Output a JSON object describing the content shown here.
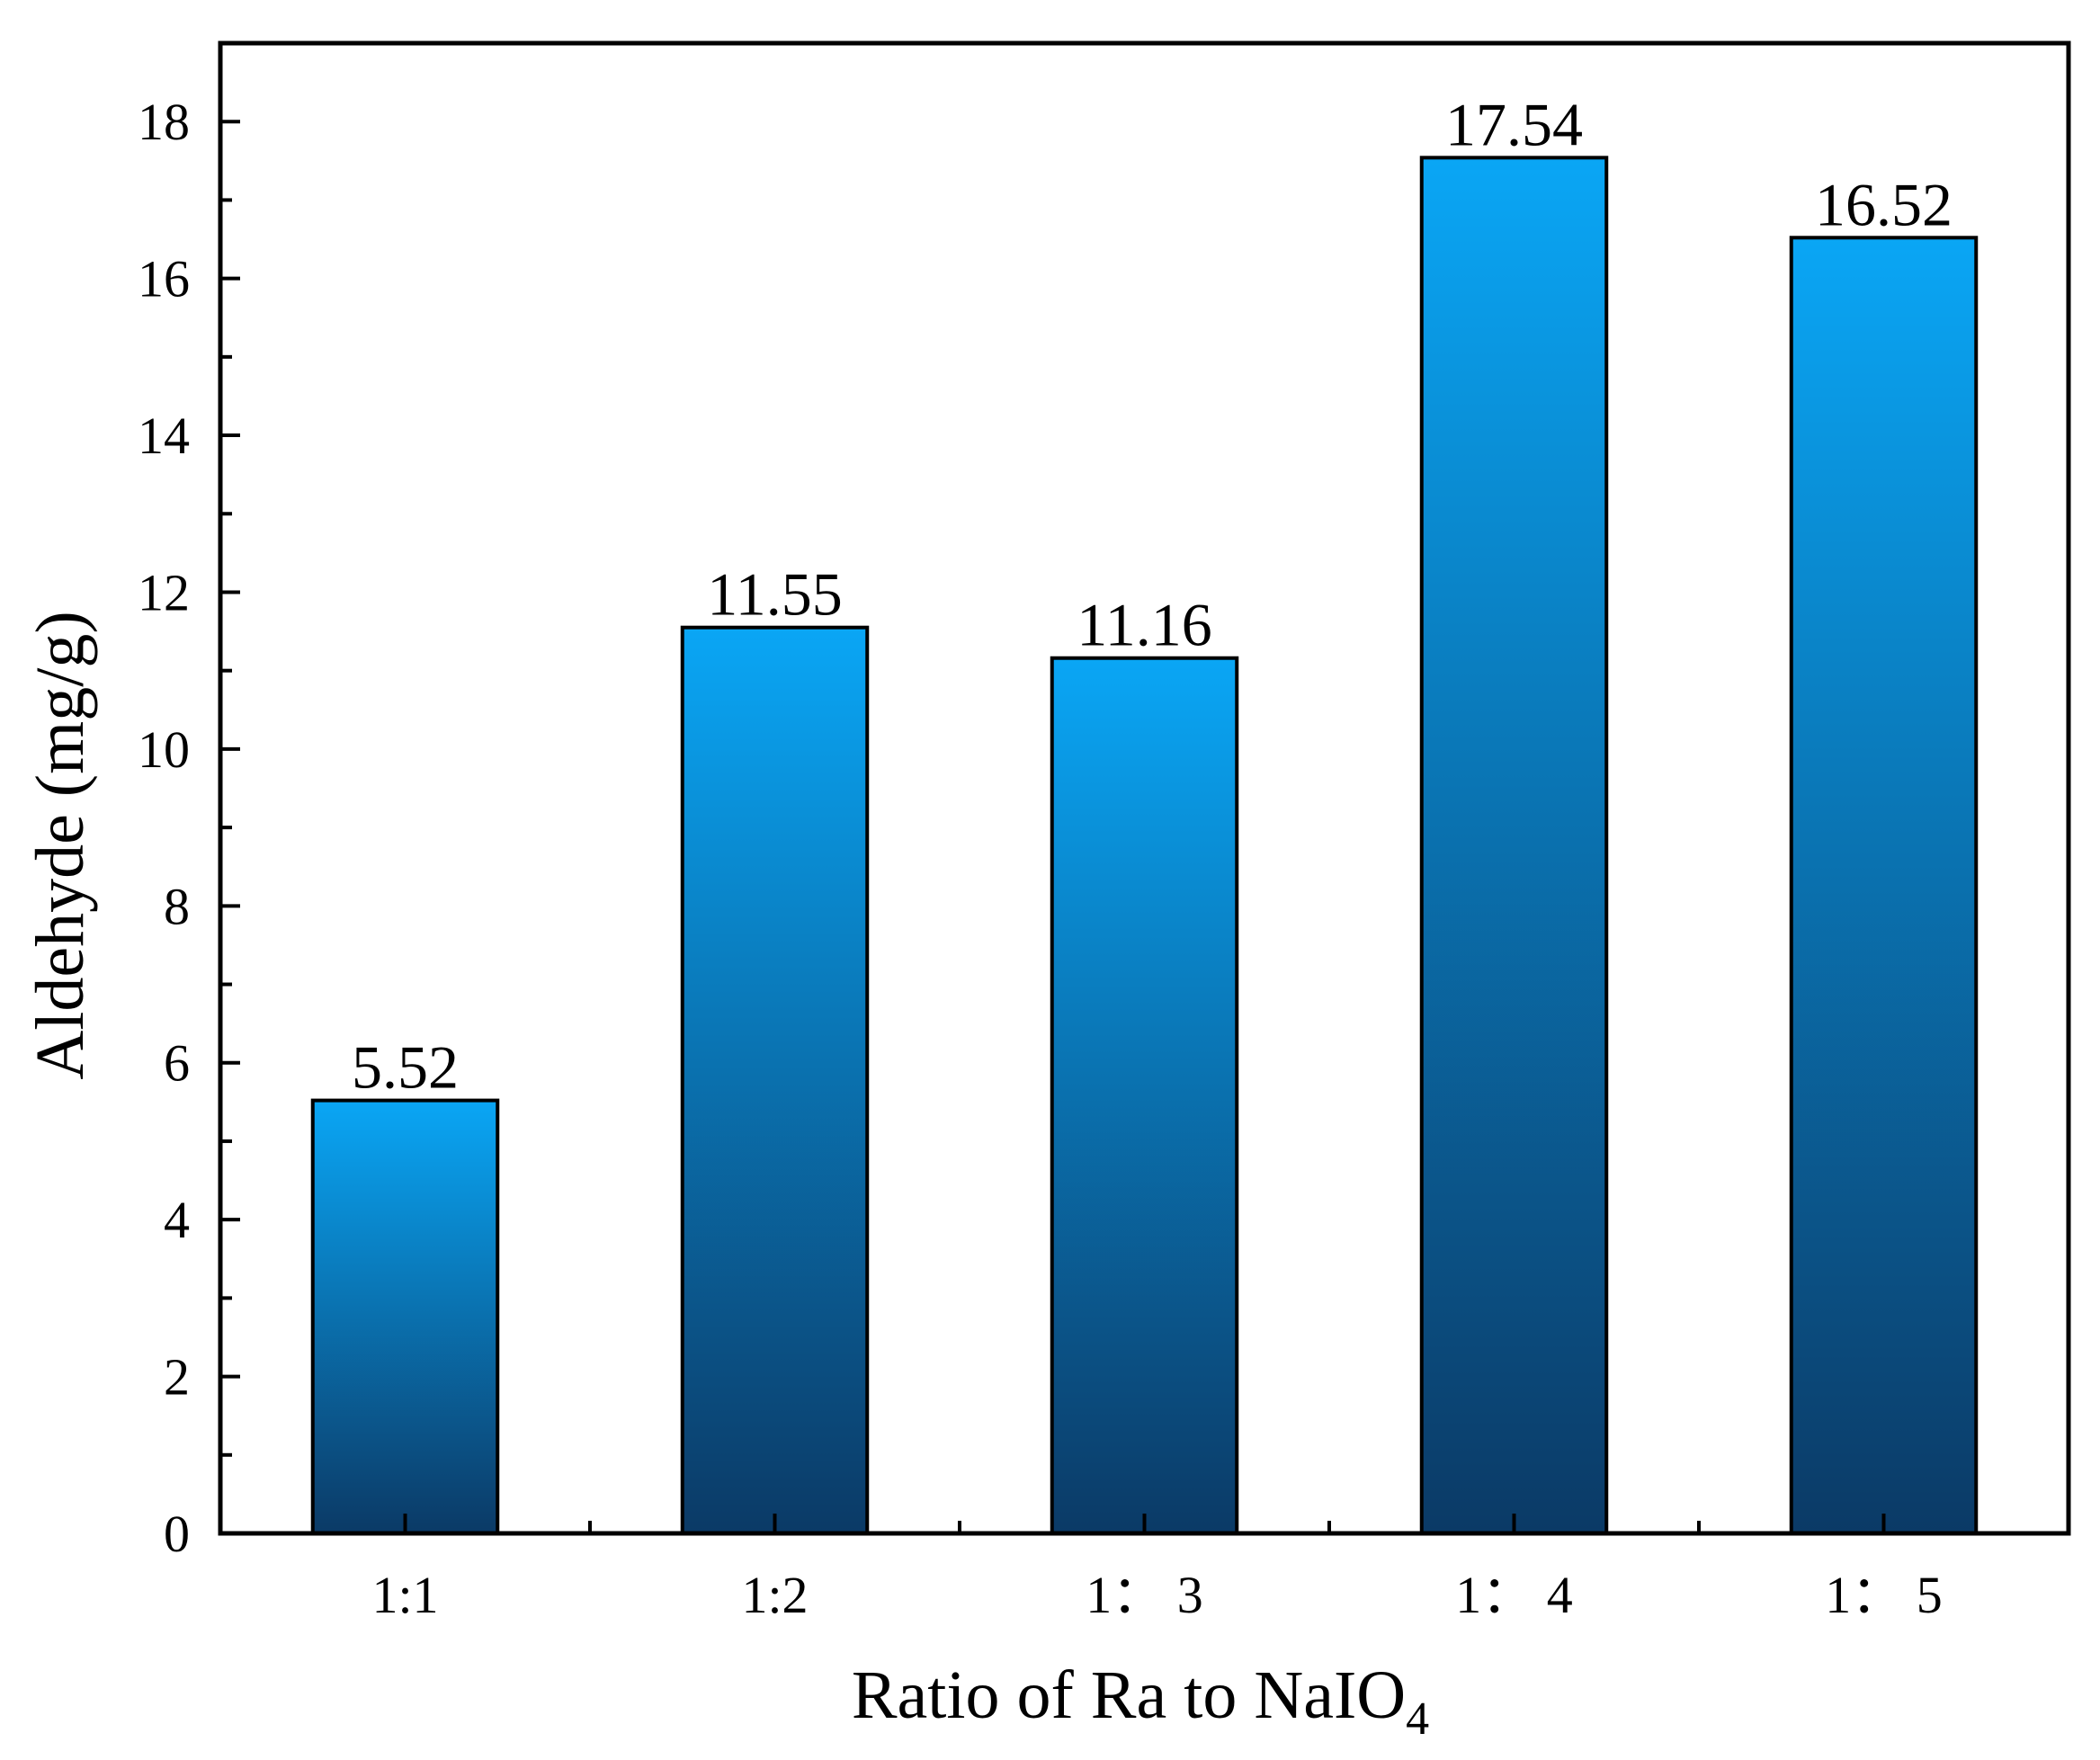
{
  "chart_data": {
    "type": "bar",
    "title": "",
    "categories": [
      "1:1",
      "1:2",
      "1： 3",
      "1： 4",
      "1： 5"
    ],
    "values": [
      5.52,
      11.55,
      11.16,
      17.54,
      16.52
    ],
    "data_labels": [
      "5.52",
      "11.55",
      "11.16",
      "17.54",
      "16.52"
    ],
    "xlabel": "Ratio of Ra to NaIO",
    "xlabel_subscript": "4",
    "ylabel": "Aldehyde (mg/g)",
    "ylim": [
      0,
      19
    ],
    "yticks": [
      0,
      2,
      4,
      6,
      8,
      10,
      12,
      14,
      16,
      18
    ],
    "ytick_labels": [
      "0",
      "2",
      "4",
      "6",
      "8",
      "10",
      "12",
      "14",
      "16",
      "18"
    ],
    "grid": false,
    "colors": {
      "bar_top": "#0aa6f5",
      "bar_bottom": "#0b3a66",
      "axis": "#000000"
    }
  }
}
